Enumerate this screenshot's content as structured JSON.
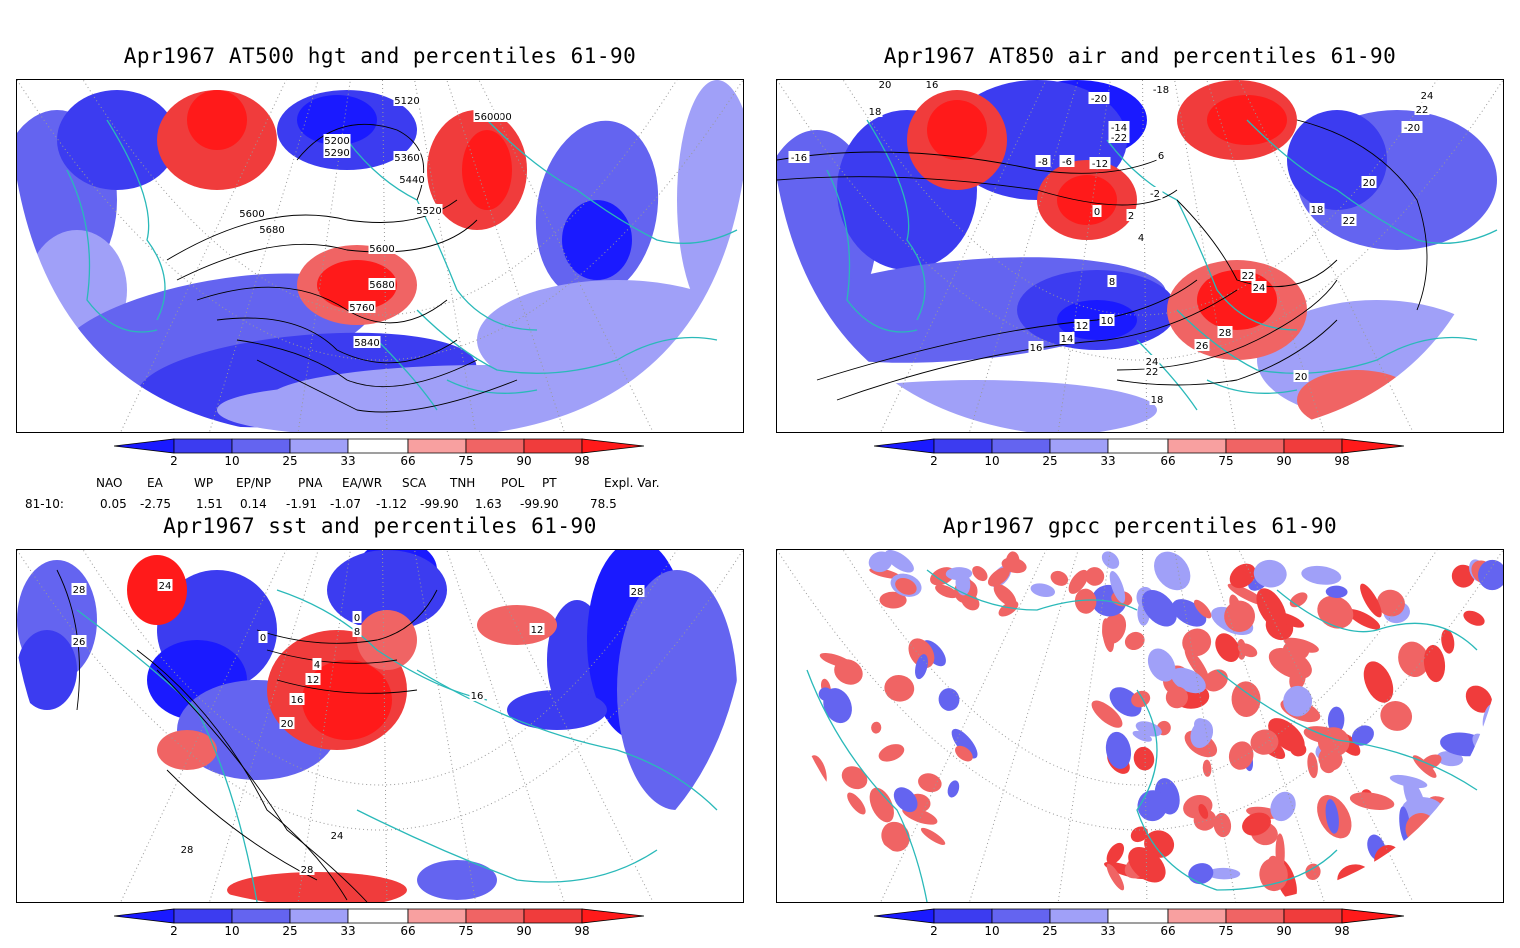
{
  "panels": {
    "top_left": {
      "title": "Apr1967 AT500 hgt and percentiles 61-90",
      "contour_labels": [
        "5120",
        "5200",
        "5290",
        "5360",
        "5440",
        "5520",
        "5600",
        "5600",
        "5680",
        "5600",
        "5680",
        "5760",
        "5840",
        "5600"
      ]
    },
    "top_right": {
      "title": "Apr1967 AT850 air and percentiles 61-90",
      "contour_labels": [
        "20",
        "16",
        "18",
        "-16",
        "-20",
        "-18",
        "24",
        "22",
        "-20",
        "18",
        "20",
        "22",
        "-6",
        "-2",
        "0",
        "2",
        "4",
        "6",
        "8",
        "10",
        "12",
        "14",
        "16",
        "22",
        "24",
        "26",
        "28",
        "24",
        "22",
        "20",
        "18",
        "-12",
        "-14",
        "-22",
        "-8"
      ]
    },
    "bottom_left": {
      "title": "Apr1967 sst and percentiles 61-90",
      "contour_labels": [
        "28",
        "26",
        "24",
        "0",
        "0",
        "8",
        "4",
        "12",
        "16",
        "20",
        "24",
        "28",
        "28",
        "12",
        "16",
        "28"
      ]
    },
    "bottom_right": {
      "title": "Apr1967 gpcc percentiles 61-90"
    }
  },
  "colorbar": {
    "ticks": [
      "2",
      "10",
      "25",
      "33",
      "66",
      "75",
      "90",
      "98"
    ],
    "colors": [
      "#1a1aff",
      "#3c3cf0",
      "#6464f0",
      "#a0a0f8",
      "#ffffff",
      "#f8a0a0",
      "#f06464",
      "#f03c3c",
      "#ff1a1a"
    ]
  },
  "indices": {
    "headers": [
      "NAO",
      "EA",
      "WP",
      "EP/NP",
      "PNA",
      "EA/WR",
      "SCA",
      "TNH",
      "POL",
      "PT",
      "Expl. Var."
    ],
    "row_label": "81-10:",
    "values": [
      "0.05",
      "-2.75",
      "1.51",
      "0.14",
      "-1.91",
      "-1.07",
      "-1.12",
      "-99.90",
      "1.63",
      "-99.90",
      "78.5"
    ]
  },
  "colors": {
    "frame": "#000000",
    "coast": "#2ab9b9",
    "grid": "#999999"
  }
}
